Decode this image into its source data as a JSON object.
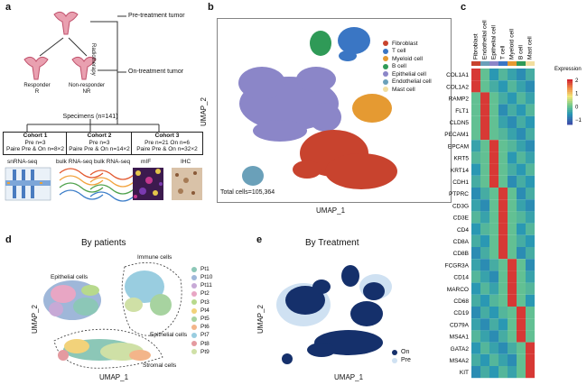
{
  "panels": {
    "a": {
      "label": "a",
      "pre_tumor": "Pre-treatment tumor",
      "on_tumor": "On-treatment tumor",
      "radio": "Radiotherapy",
      "responder": [
        "Responder",
        "R"
      ],
      "nonresponder": [
        "Non-responder",
        "NR"
      ],
      "specimens": "Specimens (n=141)",
      "cohorts": [
        {
          "title": "Cohort 1",
          "l1": "Pre n=3",
          "l2": "Paire Pre & On n=8×2"
        },
        {
          "title": "Cohort 2",
          "l1": "Pre n=3",
          "l2": "Paire Pre & On n=14×2"
        },
        {
          "title": "Cohort 3",
          "l1": "Pre n=21 On n=6",
          "l2": "Paire Pre & On n=32×2"
        }
      ],
      "methods": [
        "snRNA-seq",
        "bulk RNA-seq",
        "bulk RNA-seq",
        "mIF",
        "IHC"
      ]
    },
    "b": {
      "label": "b",
      "xlabel": "UMAP_1",
      "ylabel": "UMAP_2",
      "total": "Total cells=105,364",
      "legend": [
        {
          "name": "Fibroblast",
          "color": "#c8432e"
        },
        {
          "name": "T cell",
          "color": "#3a76c4"
        },
        {
          "name": "Myeloid cell",
          "color": "#e59a32"
        },
        {
          "name": "B cell",
          "color": "#2f9a57"
        },
        {
          "name": "Epithelial cell",
          "color": "#8b86c8"
        },
        {
          "name": "Endothelial cell",
          "color": "#6aa0b9"
        },
        {
          "name": "Mast cell",
          "color": "#f2dfa0"
        }
      ]
    },
    "c": {
      "label": "c",
      "cols": [
        "Fibroblast",
        "Endothelial cell",
        "Epithelial cell",
        "T cell",
        "Myeloid cell",
        "B cell",
        "Mast cell"
      ],
      "col_colors": [
        "#c8432e",
        "#6aa0b9",
        "#8b86c8",
        "#3a76c4",
        "#e59a32",
        "#2f9a57",
        "#f2dfa0"
      ],
      "genes": [
        "COL1A1",
        "COL1A2",
        "RAMP2",
        "FLT1",
        "CLDN5",
        "PECAM1",
        "EPCAM",
        "KRT5",
        "KRT14",
        "CDH1",
        "PTPRC",
        "CD3G",
        "CD3E",
        "CD4",
        "CD8A",
        "CD8B",
        "FCGR3A",
        "CD14",
        "MARCO",
        "CD68",
        "CD19",
        "CD79A",
        "MS4A1",
        "GATA2",
        "MS4A2",
        "KIT"
      ],
      "legend_title": "Expression",
      "legend_ticks": [
        "2",
        "1",
        "0",
        "−1"
      ]
    },
    "d": {
      "label": "d",
      "title": "By patients",
      "xlabel": "UMAP_1",
      "ylabel": "UMAP_2",
      "annotations": [
        "Immune cells",
        "Epithelial cells",
        "Epithelial cells",
        "Stromal cells"
      ],
      "legend": [
        {
          "name": "Pt1",
          "color": "#8cc7b7"
        },
        {
          "name": "Pt10",
          "color": "#9fb7d9"
        },
        {
          "name": "Pt11",
          "color": "#c7a9d6"
        },
        {
          "name": "Pt2",
          "color": "#e8a6c4"
        },
        {
          "name": "Pt3",
          "color": "#b7d98c"
        },
        {
          "name": "Pt4",
          "color": "#f2d27a"
        },
        {
          "name": "Pt5",
          "color": "#a7d3a0"
        },
        {
          "name": "Pt6",
          "color": "#f3b58a"
        },
        {
          "name": "Pt7",
          "color": "#99cde0"
        },
        {
          "name": "Pt8",
          "color": "#e49aa0"
        },
        {
          "name": "Pt9",
          "color": "#cfe0a6"
        }
      ]
    },
    "e": {
      "label": "e",
      "title": "By Treatment",
      "xlabel": "UMAP_1",
      "ylabel": "UMAP_2",
      "legend": [
        {
          "name": "On",
          "color": "#15306b"
        },
        {
          "name": "Pre",
          "color": "#cfe1f2"
        }
      ]
    }
  }
}
